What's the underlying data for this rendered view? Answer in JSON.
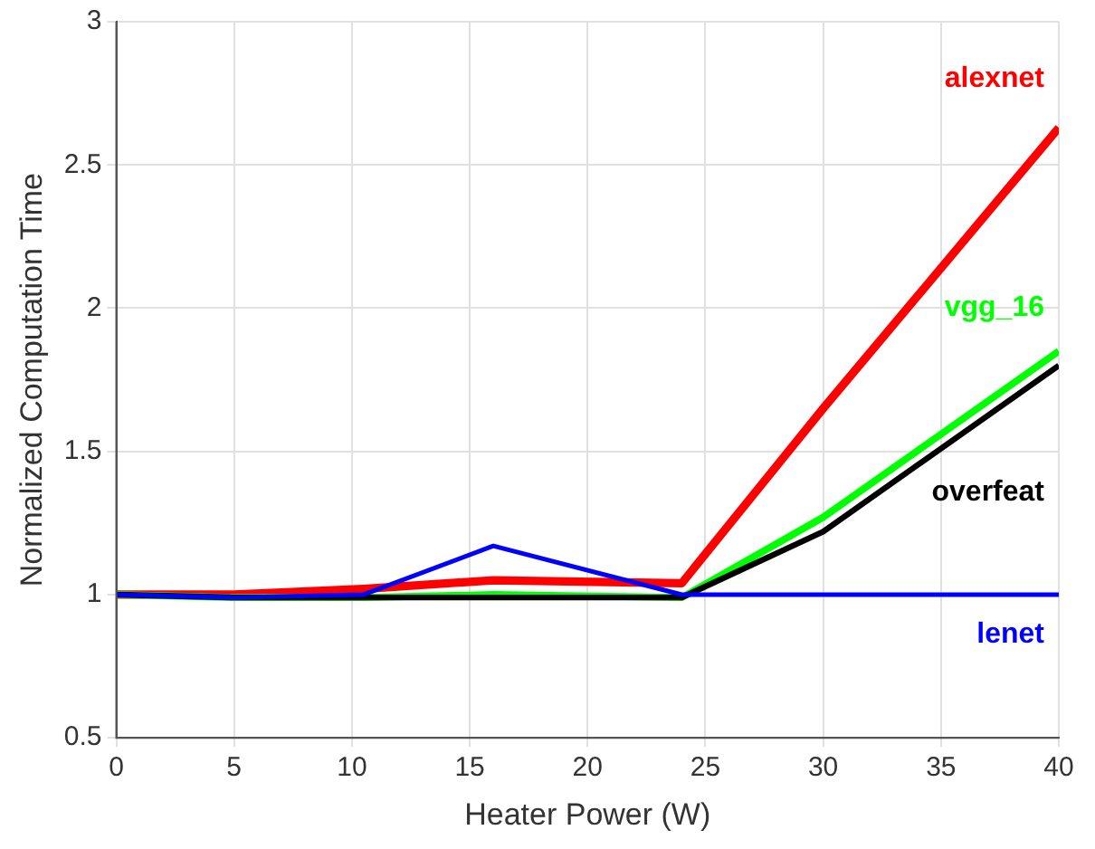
{
  "chart_data": {
    "type": "line",
    "xlabel": "Heater Power (W)",
    "ylabel": "Normalized Computation Time",
    "x": [
      0,
      5,
      10.5,
      16,
      24,
      30,
      40
    ],
    "series": [
      {
        "name": "alexnet",
        "color": "#ff0000",
        "values": [
          1,
          1.0,
          1.02,
          1.05,
          1.04,
          1.65,
          2.63
        ]
      },
      {
        "name": "vgg_16",
        "color": "#00ff00",
        "values": [
          1,
          0.99,
          0.99,
          1.0,
          0.99,
          1.27,
          1.85
        ]
      },
      {
        "name": "overfeat",
        "color": "#000000",
        "values": [
          1,
          0.99,
          0.99,
          0.99,
          0.99,
          1.22,
          1.8
        ]
      },
      {
        "name": "lenet",
        "color": "#0000ff",
        "values": [
          1,
          0.99,
          1.0,
          1.17,
          1.0,
          1.0,
          1.0
        ]
      }
    ],
    "xlim": [
      0,
      40
    ],
    "xticks": [
      0,
      5,
      10,
      15,
      20,
      25,
      30,
      35,
      40
    ],
    "ylim": [
      0.5,
      3
    ],
    "yticks": [
      0.5,
      1,
      1.5,
      2,
      2.5,
      3
    ],
    "grid": true,
    "legend": false,
    "marker": "none",
    "line_style": "solid"
  }
}
